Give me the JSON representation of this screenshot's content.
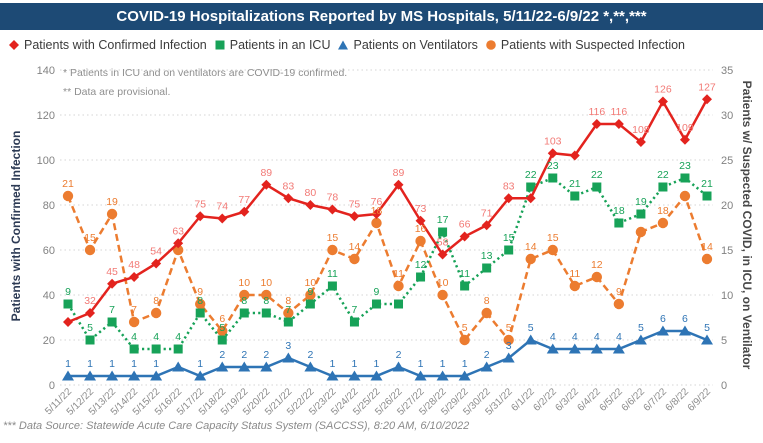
{
  "title": "COVID-19 Hospitalizations Reported by MS Hospitals, 5/11/22-6/9/22 *,**,***",
  "notes": {
    "line1": "* Patients in ICU and on ventilators are COVID-19 confirmed.",
    "line2": "** Data are provisional."
  },
  "footer": "*** Data Source: Statewide Acute Care Capacity Status System (SACCSS), 8:20 AM, 6/10/2022",
  "axes": {
    "left_title": "Patients with Confirmed Infection",
    "right_title": "Patients w/ Suspected COVID, in ICU, on Ventilator"
  },
  "colors": {
    "titlebar_bg": "#1d4a75",
    "red": "#e3231e",
    "red_label": "#f27a76",
    "green": "#17a258",
    "blue": "#2e74b5",
    "orange": "#ec7c30",
    "grid": "#d4d4d4",
    "tick_text": "#828282"
  },
  "chart_data": {
    "type": "line",
    "x": [
      "5/11/22",
      "5/12/22",
      "5/13/22",
      "5/14/22",
      "5/15/22",
      "5/16/22",
      "5/17/22",
      "5/18/22",
      "5/19/22",
      "5/20/22",
      "5/21/22",
      "5/22/22",
      "5/23/22",
      "5/24/22",
      "5/25/22",
      "5/26/22",
      "5/27/22",
      "5/28/22",
      "5/29/22",
      "5/30/22",
      "5/31/22",
      "6/1/22",
      "6/2/22",
      "6/3/22",
      "6/4/22",
      "6/5/22",
      "6/6/22",
      "6/7/22",
      "6/8/22",
      "6/9/22"
    ],
    "left_axis": {
      "min": 0,
      "max": 140,
      "step": 20
    },
    "right_axis": {
      "min": 0,
      "max": 35,
      "step": 5
    },
    "grid": "horizontal-dotted",
    "legend_position": "top",
    "series": [
      {
        "name": "Patients with Confirmed Infection",
        "axis": "left",
        "marker": "diamond",
        "line": "solid",
        "color": "#e3231e",
        "label_color": "#f27a76",
        "values": [
          28,
          32,
          45,
          48,
          54,
          63,
          75,
          74,
          77,
          89,
          83,
          80,
          78,
          75,
          76,
          89,
          73,
          58,
          66,
          71,
          83,
          83,
          103,
          102,
          116,
          116,
          108,
          126,
          109,
          127
        ],
        "hidden_label_indexes": [
          0,
          21,
          23
        ]
      },
      {
        "name": "Patients in an ICU",
        "axis": "right",
        "marker": "square",
        "line": "dotted",
        "color": "#17a258",
        "label_color": "#17a258",
        "values": [
          9,
          5,
          7,
          4,
          4,
          4,
          8,
          5,
          8,
          8,
          7,
          9,
          11,
          7,
          9,
          9,
          12,
          17,
          11,
          13,
          15,
          22,
          23,
          21,
          22,
          18,
          19,
          22,
          23,
          21
        ],
        "hidden_label_indexes": [
          15
        ]
      },
      {
        "name": "Patients on Ventilators",
        "axis": "right",
        "marker": "triangle",
        "line": "solid",
        "color": "#2e74b5",
        "label_color": "#2e74b5",
        "values": [
          1,
          1,
          1,
          1,
          1,
          2,
          1,
          2,
          2,
          2,
          3,
          2,
          1,
          1,
          1,
          2,
          1,
          1,
          1,
          2,
          3,
          5,
          4,
          4,
          4,
          4,
          5,
          6,
          6,
          5
        ],
        "hidden_label_indexes": [
          5
        ]
      },
      {
        "name": "Patients with Suspected Infection",
        "axis": "right",
        "marker": "circle",
        "line": "dashed",
        "color": "#ec7c30",
        "label_color": "#ec7c30",
        "values": [
          21,
          15,
          19,
          7,
          8,
          15,
          9,
          6,
          10,
          10,
          8,
          10,
          15,
          14,
          18,
          11,
          16,
          10,
          5,
          8,
          5,
          14,
          15,
          11,
          12,
          9,
          17,
          18,
          21,
          14
        ],
        "hidden_label_indexes": [
          5,
          26,
          28
        ]
      }
    ]
  }
}
